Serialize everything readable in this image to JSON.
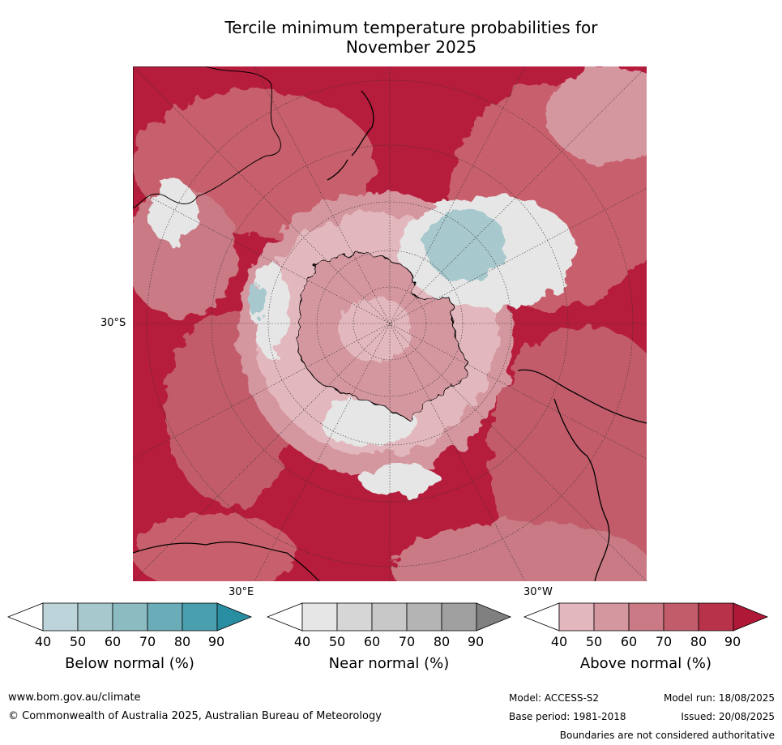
{
  "title": {
    "line1": "Tercile minimum temperature probabilities for",
    "line2": "November 2025"
  },
  "map": {
    "projection": "south polar stereographic",
    "lat_label": "30°S",
    "lon_label_left": "30°E",
    "lon_label_right": "30°W"
  },
  "colorbars": [
    {
      "title": "Below normal (%)",
      "ticks": [
        "40",
        "50",
        "60",
        "70",
        "80",
        "90"
      ],
      "colors": [
        "#ffffff",
        "#bcd4da",
        "#a7c8cd",
        "#8cbbc2",
        "#6aacb7",
        "#4a9fae",
        "#2a8ea3"
      ]
    },
    {
      "title": "Near normal (%)",
      "ticks": [
        "40",
        "50",
        "60",
        "70",
        "80",
        "90"
      ],
      "colors": [
        "#ffffff",
        "#e6e6e6",
        "#d6d6d6",
        "#c8c8c8",
        "#b4b4b4",
        "#a0a0a0",
        "#808080"
      ]
    },
    {
      "title": "Above normal (%)",
      "ticks": [
        "40",
        "50",
        "60",
        "70",
        "80",
        "90"
      ],
      "colors": [
        "#ffffff",
        "#e2b7bd",
        "#d5979f",
        "#c97a84",
        "#c25c6b",
        "#b8324a",
        "#b01838"
      ]
    }
  ],
  "footer": {
    "website": "www.bom.gov.au/climate",
    "copyright": "© Commonwealth of Australia 2025, Australian Bureau of Meteorology",
    "model": "Model: ACCESS-S2",
    "model_run": "Model run: 18/08/2025",
    "base_period": "Base period: 1981-2018",
    "issued": "Issued: 20/08/2025",
    "disclaimer": "Boundaries are not considered authoritative"
  }
}
